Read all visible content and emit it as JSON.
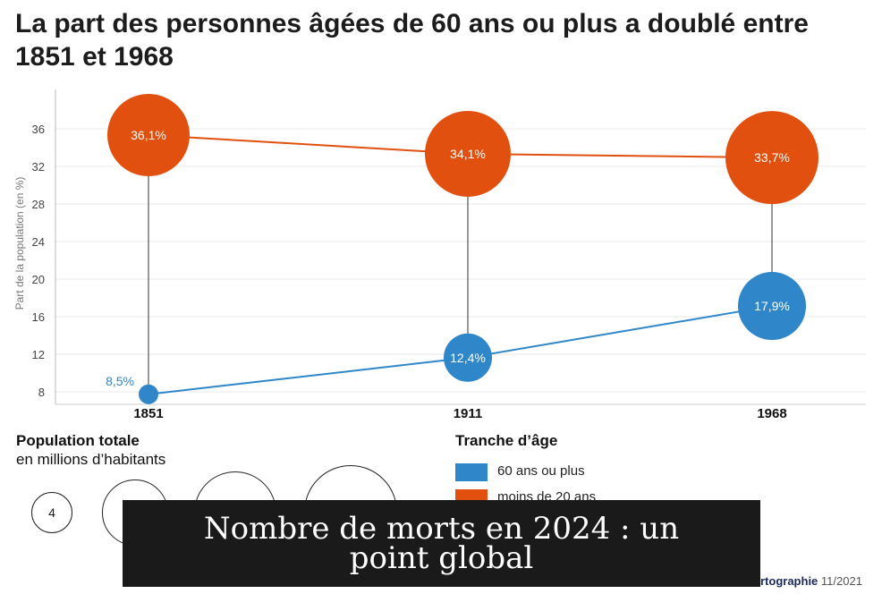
{
  "title": "La part des personnes âgées de 60 ans ou plus a doublé entre 1851 et 1968",
  "chart_data": {
    "type": "scatter",
    "categories": [
      "1851",
      "1911",
      "1968"
    ],
    "ylabel": "Part de la population (en %)",
    "yticks": [
      8,
      12,
      16,
      20,
      24,
      28,
      32,
      36
    ],
    "ylim": [
      6.5,
      40
    ],
    "grid": true,
    "series": [
      {
        "name": "moins de 20 ans",
        "values": [
          36.1,
          34.1,
          33.7
        ],
        "labels": [
          "36,1%",
          "34,1%",
          "33,7%"
        ],
        "color": "#e1500f"
      },
      {
        "name": "60 ans ou plus",
        "values": [
          8.5,
          12.4,
          17.9
        ],
        "labels": [
          "8,5%",
          "12,4%",
          "17,9%"
        ],
        "color": "#2f86c8"
      }
    ]
  },
  "legend": {
    "population_title": "Population totale",
    "population_subtitle": "en millions d’habitants",
    "population_circles": [
      "4",
      "",
      "",
      ""
    ],
    "age_title": "Tranche d’âge",
    "age_items": [
      "60 ans ou plus",
      "moins de 20 ans"
    ]
  },
  "banner": {
    "text": "Nombre de morts en 2024 : un point global"
  },
  "credit": {
    "brand": "rtographie",
    "date": "11/2021"
  }
}
